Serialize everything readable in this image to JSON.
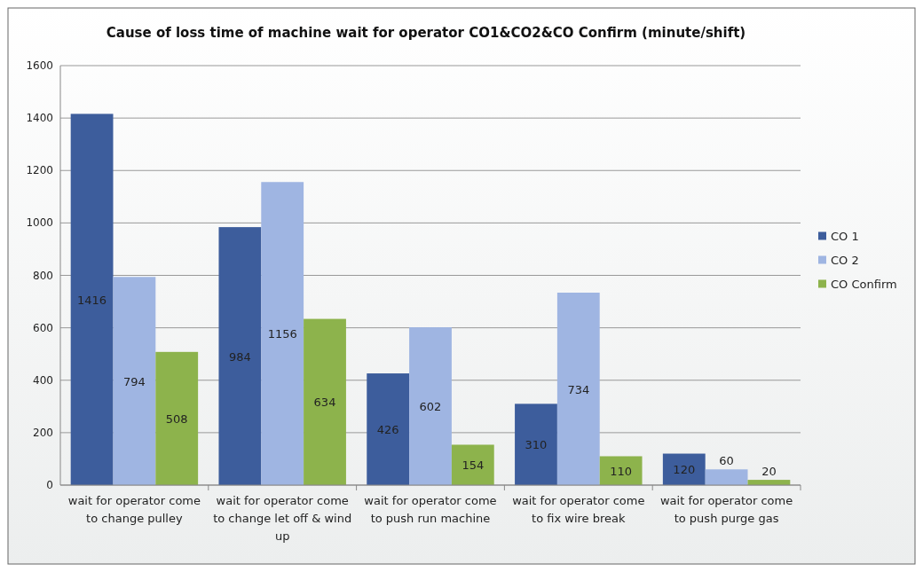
{
  "chart_data": {
    "type": "bar",
    "title": "Cause of loss time of machine wait for operator CO1&CO2&CO Confirm (minute/shift)",
    "categories": [
      "wait for operator come to change pulley",
      "wait for operator come to change let off & wind up",
      "wait for operator come to push run machine",
      "wait for operator come to fix wire break",
      "wait for operator come to push purge gas"
    ],
    "series": [
      {
        "name": "CO 1",
        "color": "#3d5d9c",
        "values": [
          1416,
          984,
          426,
          310,
          120
        ]
      },
      {
        "name": "CO 2",
        "color": "#9fb5e2",
        "values": [
          794,
          1156,
          602,
          734,
          60
        ]
      },
      {
        "name": "CO Confirm",
        "color": "#8db34c",
        "values": [
          508,
          634,
          154,
          110,
          20
        ]
      }
    ],
    "ylim": [
      0,
      1600
    ],
    "yticks": [
      0,
      200,
      400,
      600,
      800,
      1000,
      1200,
      1400,
      1600
    ],
    "grid": "y",
    "legend": "right",
    "data_labels": true
  }
}
